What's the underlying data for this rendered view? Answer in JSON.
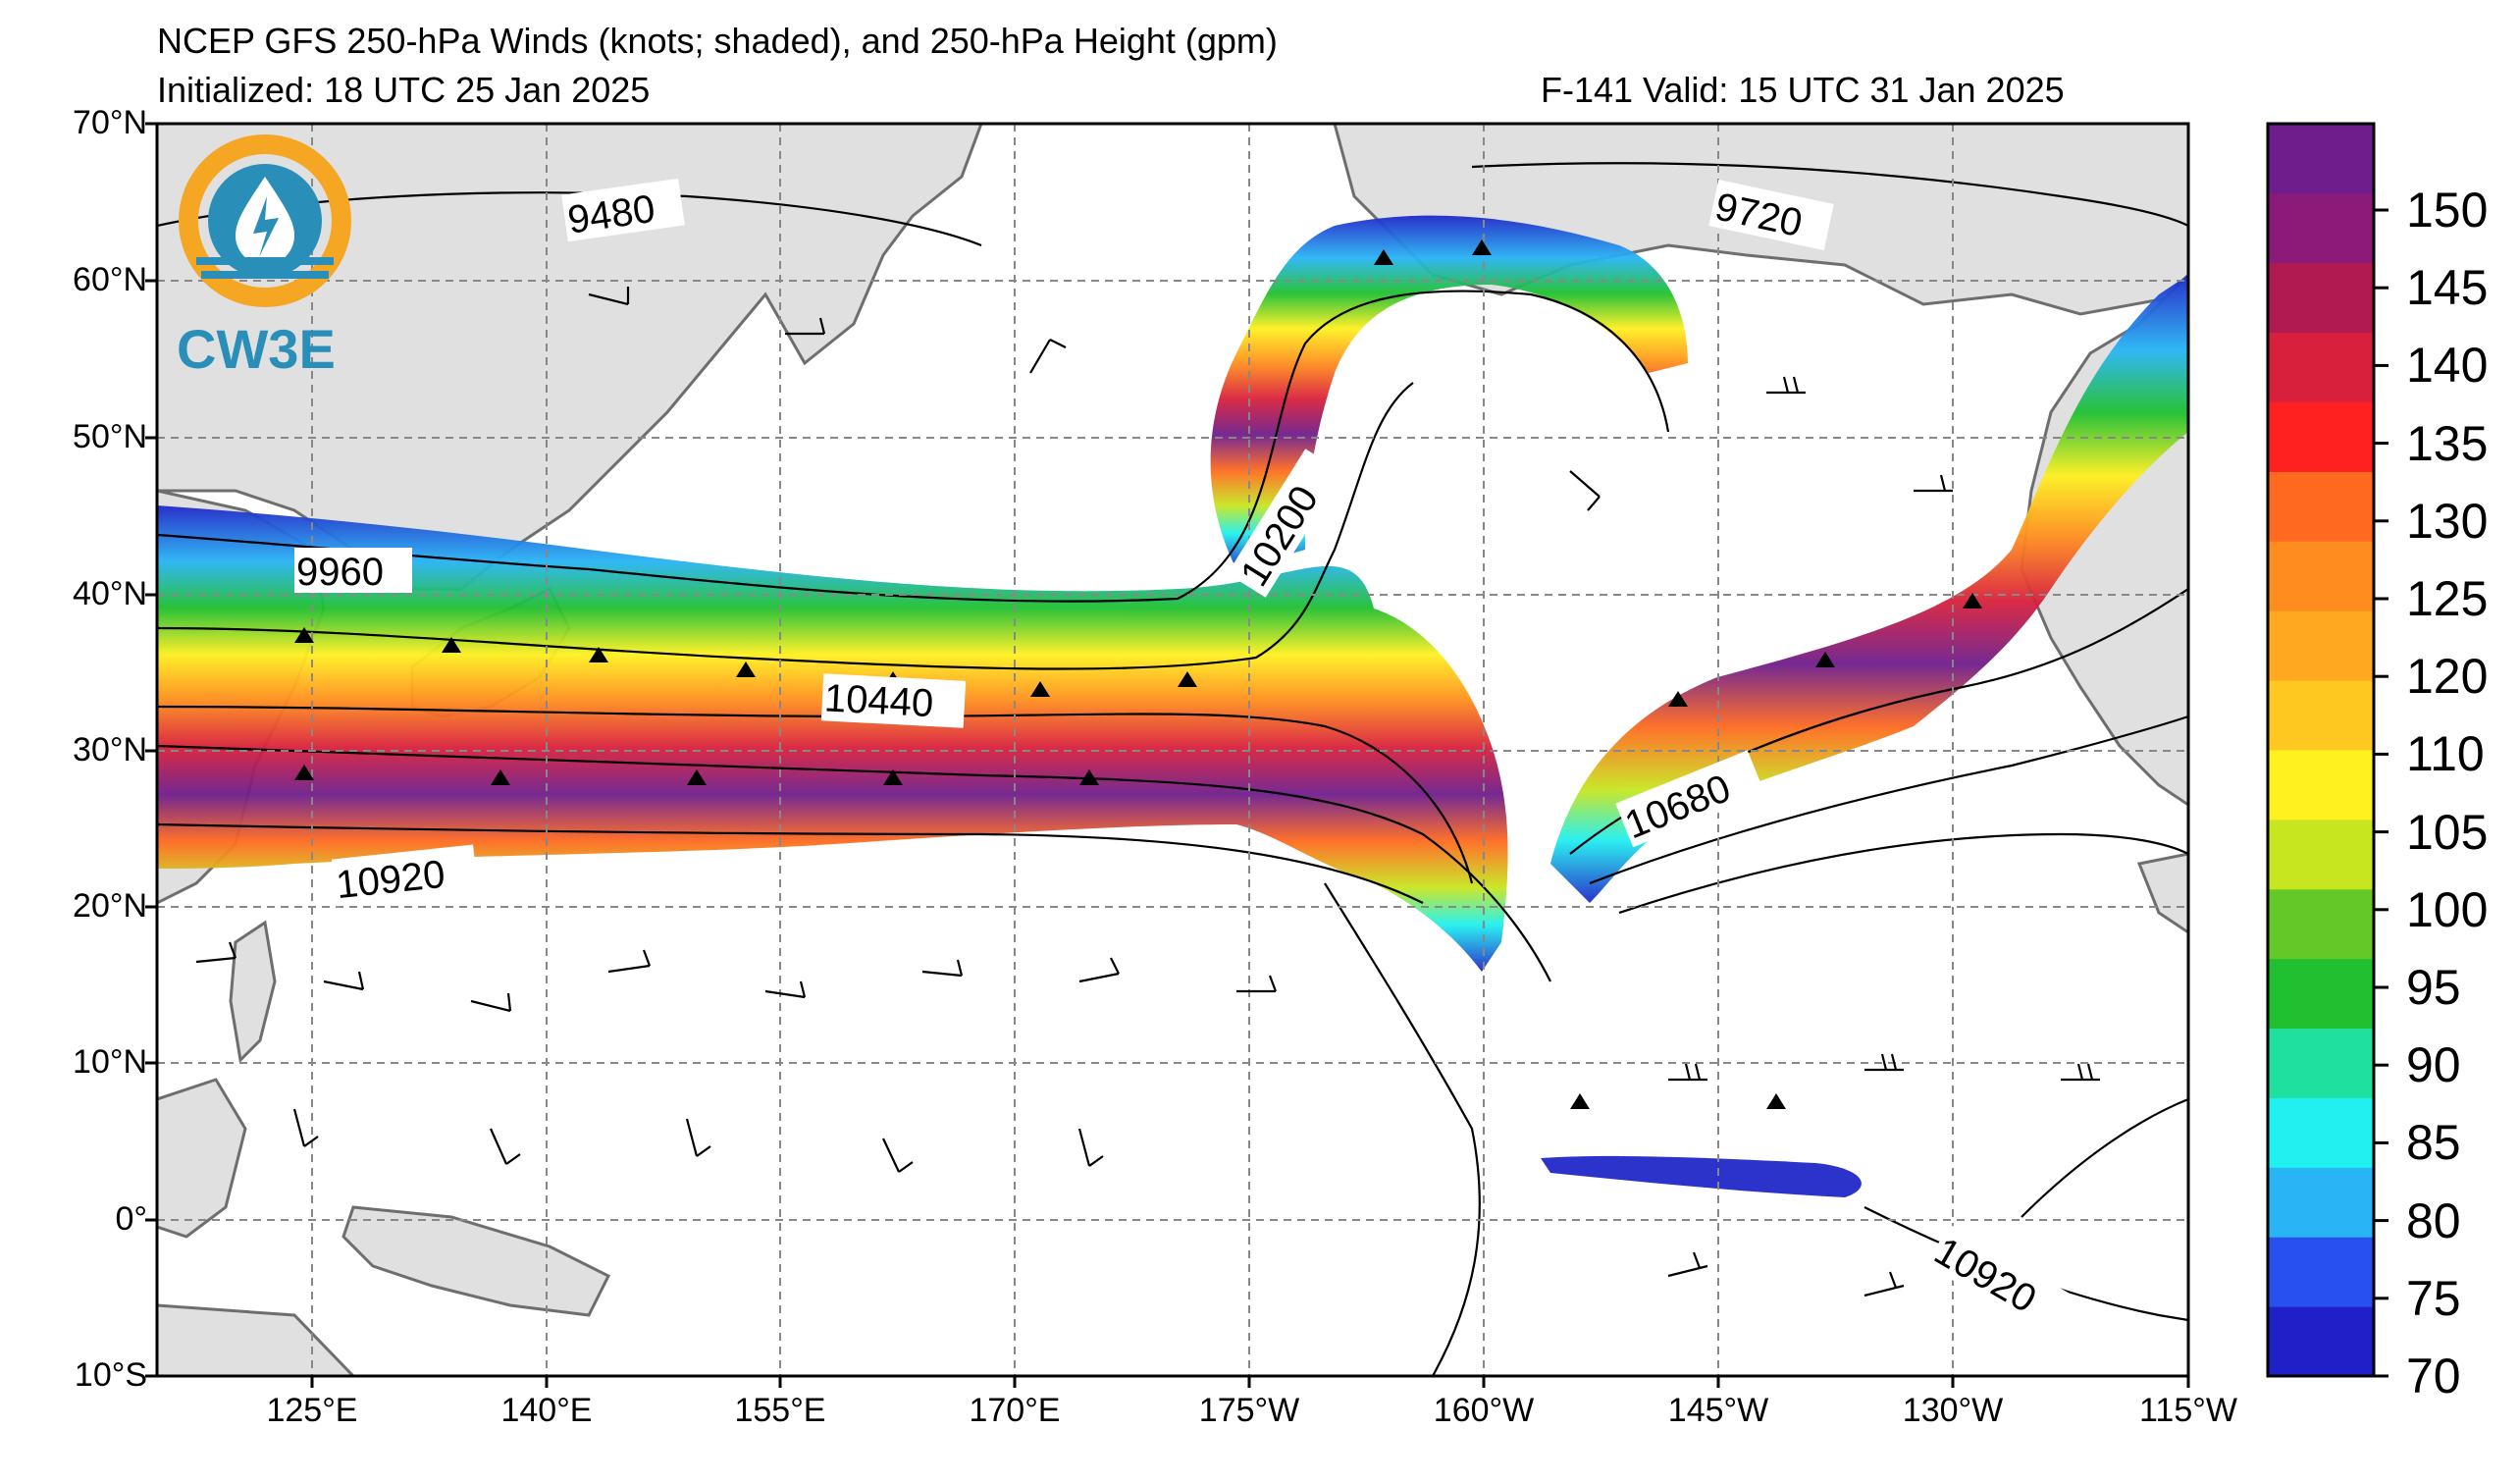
{
  "header": {
    "title": "NCEP GFS 250-hPa Winds (knots; shaded), and 250-hPa Height (gpm)",
    "initialized": "Initialized: 18 UTC 25 Jan 2025",
    "valid": "F-141  Valid: 15 UTC 31 Jan 2025"
  },
  "logo": {
    "text": "CW3E",
    "colors": {
      "ring": "#f5a623",
      "inner": "#2a8fb8",
      "text": "#2a8fb8"
    }
  },
  "map": {
    "lat_labels": [
      "70°N",
      "60°N",
      "50°N",
      "40°N",
      "30°N",
      "20°N",
      "10°N",
      "0°",
      "10°S"
    ],
    "lon_labels": [
      "125°E",
      "140°E",
      "155°E",
      "170°E",
      "175°W",
      "160°W",
      "145°W",
      "130°W",
      "115°W"
    ],
    "lat_range": [
      -10,
      70
    ],
    "lon_range_desc": "115°E to 115°W",
    "land_color": "#e0e0e0",
    "coast_color": "#6e6e6e",
    "grid_style": "dashed"
  },
  "contour_labels": [
    "9480",
    "9720",
    "9960",
    "10200",
    "10440",
    "10680",
    "10920",
    "10920"
  ],
  "colorbar": {
    "ticks": [
      "150",
      "145",
      "140",
      "135",
      "130",
      "125",
      "120",
      "110",
      "105",
      "100",
      "95",
      "90",
      "85",
      "80",
      "75",
      "70"
    ],
    "colors": [
      "#2020c8",
      "#2850f0",
      "#28b4f5",
      "#20f0f0",
      "#20e0a0",
      "#20c030",
      "#64c828",
      "#c8e620",
      "#fff020",
      "#ffc820",
      "#ffa820",
      "#ff8c1e",
      "#ff6a20",
      "#ff2020",
      "#d8203c",
      "#b01a50",
      "#8c1a78",
      "#6e1e8c"
    ]
  }
}
